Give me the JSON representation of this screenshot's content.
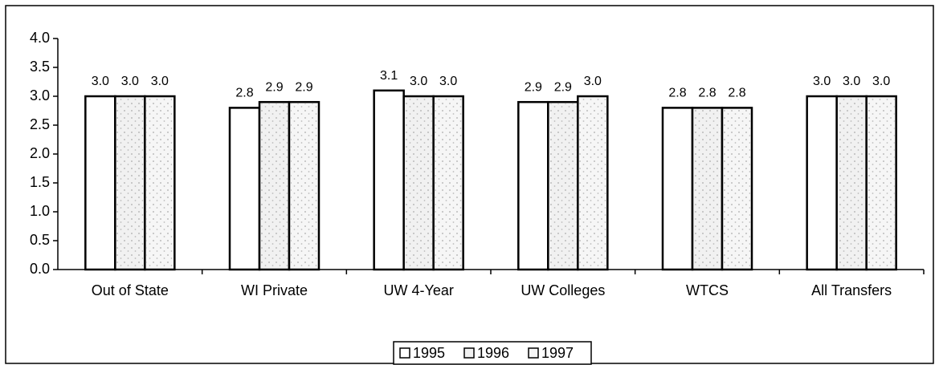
{
  "chart_data": {
    "type": "bar",
    "categories": [
      "Out of State",
      "WI Private",
      "UW 4-Year",
      "UW Colleges",
      "WTCS",
      "All Transfers"
    ],
    "series": [
      {
        "name": "1995",
        "color": "#ffffff",
        "values": [
          3.0,
          2.8,
          3.1,
          2.9,
          2.8,
          3.0
        ],
        "value_labels": [
          "3.0",
          "2.8",
          "3.1",
          "2.9",
          "2.8",
          "3.0"
        ]
      },
      {
        "name": "1996",
        "color": "#f1f1f1",
        "values": [
          3.0,
          2.9,
          3.0,
          2.9,
          2.8,
          3.0
        ],
        "value_labels": [
          "3.0",
          "2.9",
          "3.0",
          "2.9",
          "2.8",
          "3.0"
        ]
      },
      {
        "name": "1997",
        "color": "#f6f6f6",
        "values": [
          3.0,
          2.9,
          3.0,
          3.0,
          2.8,
          3.0
        ],
        "value_labels": [
          "3.0",
          "2.9",
          "3.0",
          "3.0",
          "2.8",
          "3.0"
        ]
      }
    ],
    "ylim": [
      0,
      4
    ],
    "yticks": [
      {
        "value": 0,
        "label": "0.0"
      },
      {
        "value": 0.5,
        "label": "0.5"
      },
      {
        "value": 1,
        "label": "1.0"
      },
      {
        "value": 1.5,
        "label": "1.5"
      },
      {
        "value": 2,
        "label": "2.0"
      },
      {
        "value": 2.5,
        "label": "2.5"
      },
      {
        "value": 3,
        "label": "3.0"
      },
      {
        "value": 3.5,
        "label": "3.5"
      },
      {
        "value": 4,
        "label": "4.0"
      }
    ],
    "legend": "bottom"
  }
}
